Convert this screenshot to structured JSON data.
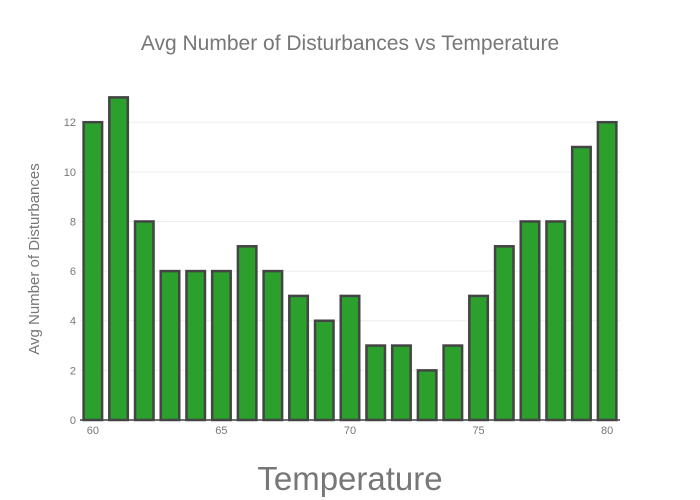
{
  "chart_data": {
    "type": "bar",
    "title": "Avg Number of Disturbances vs Temperature",
    "xlabel": "Temperature",
    "ylabel": "Avg Number of Disturbances",
    "x": [
      60,
      61,
      62,
      63,
      64,
      65,
      66,
      67,
      68,
      69,
      70,
      71,
      72,
      73,
      74,
      75,
      76,
      77,
      78,
      79,
      80
    ],
    "values": [
      12,
      13,
      8,
      6,
      6,
      6,
      7,
      6,
      5,
      4,
      5,
      3,
      3,
      2,
      3,
      5,
      7,
      8,
      8,
      11,
      12
    ],
    "xticks": [
      60,
      65,
      70,
      75,
      80
    ],
    "yticks": [
      0,
      2,
      4,
      6,
      8,
      10,
      12
    ],
    "xlim": [
      59.5,
      80.5
    ],
    "ylim": [
      0,
      13.7
    ],
    "grid": true,
    "legend": "none",
    "colors": {
      "bar_fill": "#2ca02c",
      "bar_stroke": "#444444",
      "text": "#777777",
      "grid": "#eeeeee"
    }
  }
}
